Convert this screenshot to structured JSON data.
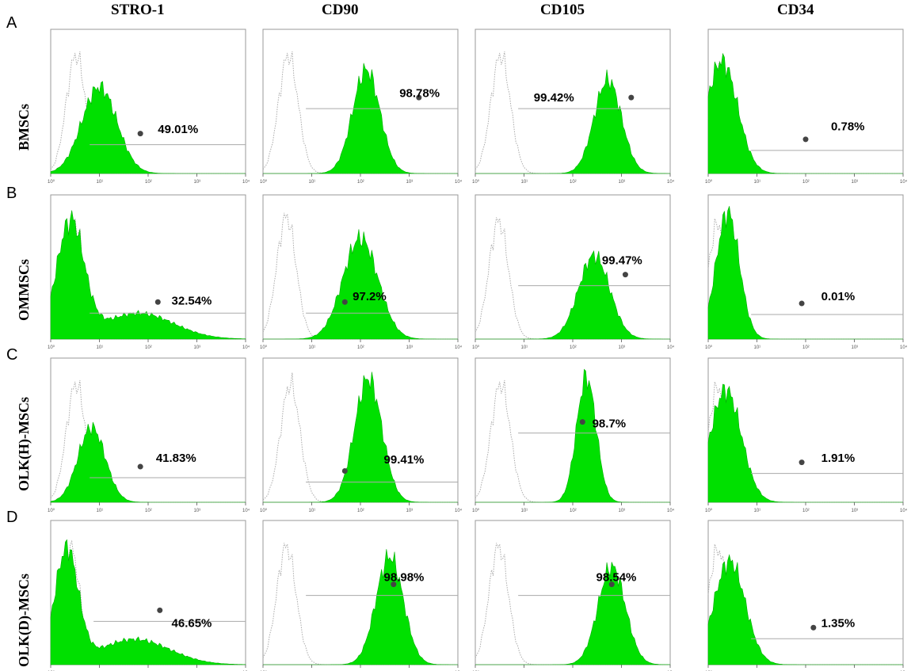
{
  "chart_data": {
    "type": "area",
    "description_rows": [
      "A",
      "B",
      "C",
      "D"
    ],
    "columns": [
      "STRO-1",
      "CD90",
      "CD105",
      "CD34"
    ],
    "rows": [
      {
        "letter": "A",
        "label": "BMSCs",
        "values": [
          "49.01%",
          "98.78%",
          "99.42%",
          "0.78%"
        ]
      },
      {
        "letter": "B",
        "label": "OMMSCs",
        "values": [
          "32.54%",
          "97.2%",
          "99.47%",
          "0.01%"
        ]
      },
      {
        "letter": "C",
        "label": "OLK(H)-MSCs",
        "values": [
          "41.83%",
          "99.41%",
          "98.7%",
          "1.91%"
        ]
      },
      {
        "letter": "D",
        "label": "OLK(D)-MSCs",
        "values": [
          "46.65%",
          "98.98%",
          "98.54%",
          "1.35%"
        ]
      }
    ],
    "x_scale": "log",
    "x_ticks": [
      "10⁰",
      "10¹",
      "10²",
      "10³",
      "10⁴"
    ],
    "colors": {
      "stained": "#00e000",
      "control": "#aaaaaa",
      "frame": "#999999"
    }
  }
}
